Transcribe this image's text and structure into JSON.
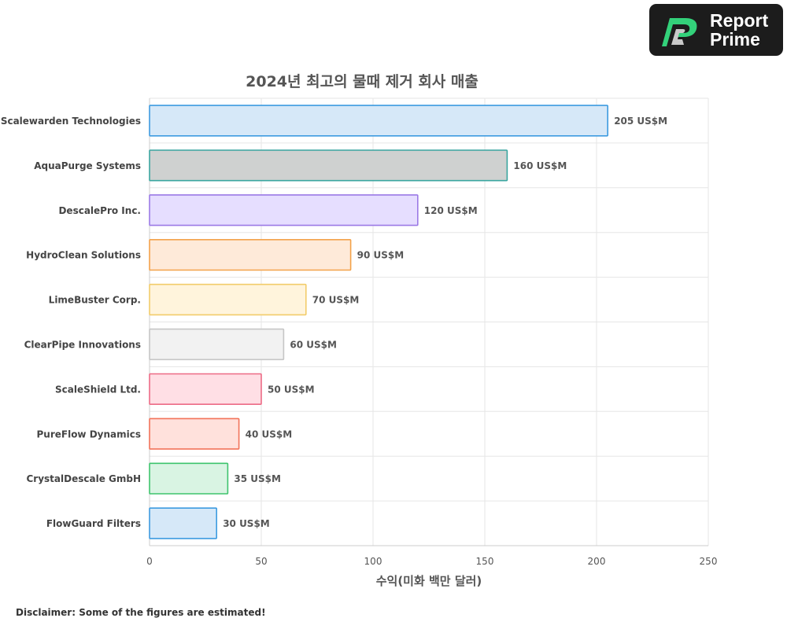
{
  "brand": {
    "line1": "Report",
    "line2": "Prime",
    "icon": "report-prime-logo-icon"
  },
  "chart_data": {
    "type": "bar",
    "orientation": "horizontal",
    "title": "2024년 최고의 물때 제거 회사 매출",
    "xlabel": "수익(미화 백만 달러)",
    "ylabel": "",
    "categories": [
      "Scalewarden Technologies",
      "AquaPurge Systems",
      "DescalePro Inc.",
      "HydroClean Solutions",
      "LimeBuster Corp.",
      "ClearPipe Innovations",
      "ScaleShield Ltd.",
      "PureFlow Dynamics",
      "CrystalDescale GmbH",
      "FlowGuard Filters"
    ],
    "values": [
      205,
      160,
      120,
      90,
      70,
      60,
      50,
      40,
      35,
      30
    ],
    "data_labels": [
      "205 US$M",
      "160 US$M",
      "120 US$M",
      "90 US$M",
      "70 US$M",
      "60 US$M",
      "50 US$M",
      "40 US$M",
      "35 US$M",
      "30 US$M"
    ],
    "xlim": [
      0,
      250
    ],
    "x_ticks": [
      "0",
      "50",
      "100",
      "150",
      "200",
      "250"
    ],
    "grid": true,
    "legend": "none",
    "bar_colors": [
      {
        "fill": "#d6e8f8",
        "stroke": "#3d9be0"
      },
      {
        "fill": "#cfd1d0",
        "stroke": "#3aa6a0"
      },
      {
        "fill": "#e6deff",
        "stroke": "#9b7ae6"
      },
      {
        "fill": "#feead9",
        "stroke": "#f3a24a"
      },
      {
        "fill": "#fff4dc",
        "stroke": "#f2cc6a"
      },
      {
        "fill": "#f2f2f2",
        "stroke": "#c6c6c6"
      },
      {
        "fill": "#ffdfe5",
        "stroke": "#ec6b86"
      },
      {
        "fill": "#ffe1dc",
        "stroke": "#f2735a"
      },
      {
        "fill": "#d9f4e3",
        "stroke": "#3ec46d"
      },
      {
        "fill": "#d6e8f8",
        "stroke": "#3d9be0"
      }
    ]
  },
  "footer": {
    "disclaimer": "Disclaimer: Some of the figures are estimated!"
  }
}
